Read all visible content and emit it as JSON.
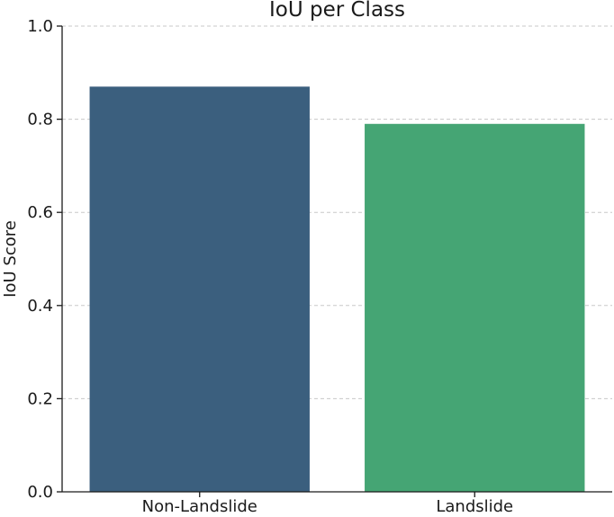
{
  "chart_data": {
    "type": "bar",
    "title": "IoU per Class",
    "xlabel": "",
    "ylabel": "IoU Score",
    "categories": [
      "Non-Landslide",
      "Landslide"
    ],
    "values": [
      0.87,
      0.79
    ],
    "colors": [
      "#3b5f7e",
      "#45a574"
    ],
    "ylim": [
      0,
      1.0
    ],
    "yticks": [
      "0.0",
      "0.2",
      "0.4",
      "0.6",
      "0.8",
      "1.0"
    ],
    "grid": "y-dashed",
    "legend": "none"
  }
}
